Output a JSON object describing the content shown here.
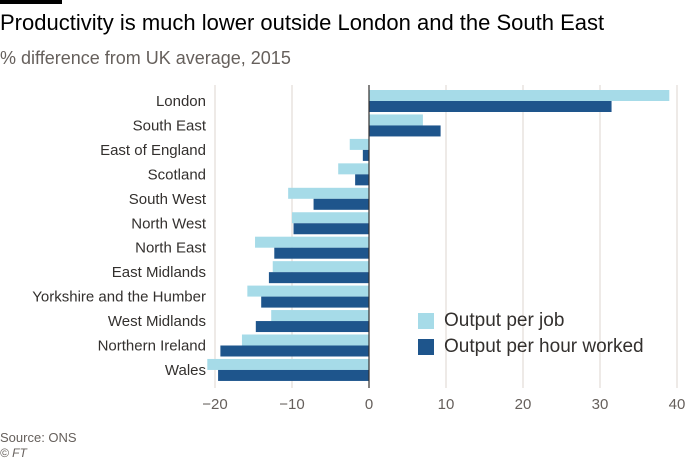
{
  "title": "Productivity is much lower outside London and the South East",
  "subtitle": "% difference from UK average, 2015",
  "source": "Source: ONS",
  "credit": "© FT",
  "colors": {
    "output_per_job": "#a6dbe8",
    "output_per_hour": "#1e558c",
    "grid": "#dcd6cf",
    "zero_line": "#33302e",
    "text": "#33302e",
    "muted": "#66605c"
  },
  "chart_data": {
    "type": "bar",
    "orientation": "horizontal",
    "title": "Productivity is much lower outside London and the South East",
    "subtitle": "% difference from UK average, 2015",
    "xlabel": "",
    "ylabel": "",
    "xlim": [
      -20,
      40
    ],
    "xticks": [
      -20,
      -10,
      0,
      10,
      20,
      30,
      40
    ],
    "grid": true,
    "legend_position": "bottom-right",
    "categories": [
      "London",
      "South East",
      "East of England",
      "Scotland",
      "South West",
      "North West",
      "North East",
      "East Midlands",
      "Yorkshire and the Humber",
      "West Midlands",
      "Northern Ireland",
      "Wales"
    ],
    "series": [
      {
        "name": "Output per job",
        "values": [
          39,
          7,
          -2.5,
          -4,
          -10.5,
          -10,
          -14.8,
          -12.5,
          -15.8,
          -12.7,
          -16.5,
          -21
        ]
      },
      {
        "name": "Output per hour worked",
        "values": [
          31.5,
          9.3,
          -0.8,
          -1.8,
          -7.2,
          -9.8,
          -12.3,
          -13,
          -14,
          -14.7,
          -19.3,
          -19.6
        ]
      }
    ]
  }
}
